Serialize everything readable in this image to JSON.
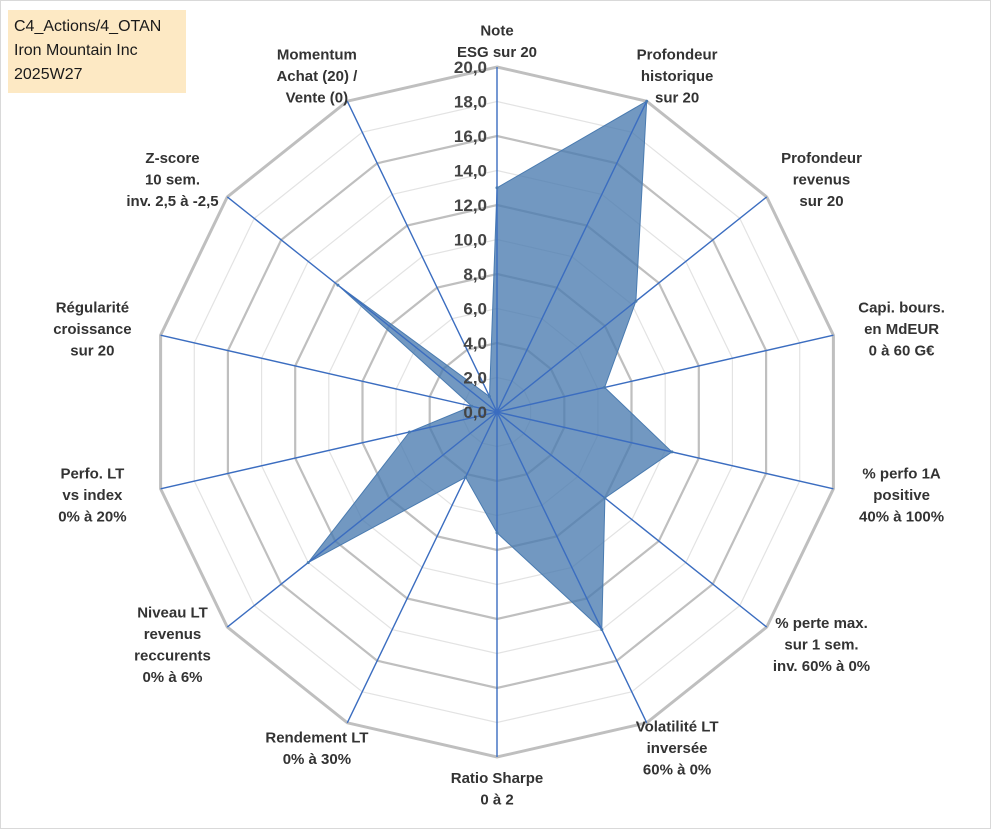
{
  "info_box": {
    "line1": "C4_Actions/4_OTAN",
    "line2": "Iron Mountain Inc",
    "line3": "2025W27"
  },
  "colors": {
    "fill": "#4a7bb0",
    "axis": "#3b6dc0",
    "grid_outer": "#bfbfbf",
    "grid_inner": "#e3e3e3",
    "label_box": "#fde9c4"
  },
  "chart_data": {
    "type": "radar",
    "title": "",
    "rmin": 0,
    "rmax": 20,
    "tick_step": 2,
    "tick_labels": [
      "0,0",
      "2,0",
      "4,0",
      "6,0",
      "8,0",
      "10,0",
      "12,0",
      "14,0",
      "16,0",
      "18,0",
      "20,0"
    ],
    "axes": [
      {
        "label": [
          "Note",
          "ESG sur 20"
        ],
        "value": 13.0
      },
      {
        "label": [
          "Profondeur",
          "historique",
          "sur 20"
        ],
        "value": 20.0
      },
      {
        "label": [
          "Profondeur",
          "revenus",
          "sur 20"
        ],
        "value": 10.3
      },
      {
        "label": [
          "Capi. bours.",
          "en MdEUR",
          "0 à 60 G€"
        ],
        "value": 6.4
      },
      {
        "label": [
          "% perfo 1A",
          "positive",
          "40% à 100%"
        ],
        "value": 10.4
      },
      {
        "label": [
          "% perte max.",
          "sur 1 sem.",
          "inv. 60% à 0%"
        ],
        "value": 8.0
      },
      {
        "label": [
          "Volatilité LT",
          "inversée",
          "60% à 0%"
        ],
        "value": 14.0
      },
      {
        "label": [
          "Ratio Sharpe",
          "0 à 2"
        ],
        "value": 7.0
      },
      {
        "label": [
          "Rendement LT",
          "0% à 30%"
        ],
        "value": 4.2
      },
      {
        "label": [
          "Niveau LT",
          "revenus",
          "reccurents",
          "0% à 6%"
        ],
        "value": 14.0
      },
      {
        "label": [
          "Perfo. LT",
          "vs index",
          "0% à 20%"
        ],
        "value": 5.2
      },
      {
        "label": [
          "Régularité",
          "croissance",
          "sur 20"
        ],
        "value": 1.5
      },
      {
        "label": [
          "Z-score",
          "10 sem.",
          "inv. 2,5 à -2,5"
        ],
        "value": 11.8
      },
      {
        "label": [
          "Momentum",
          "Achat (20) /",
          "Vente (0)"
        ],
        "value": 1.0
      }
    ]
  }
}
